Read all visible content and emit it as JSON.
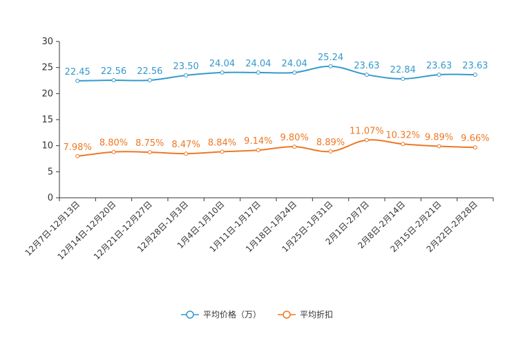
{
  "chart_data": {
    "type": "line",
    "title": "",
    "xlabel": "",
    "ylabel": "",
    "ylim": [
      0,
      30
    ],
    "yticks": [
      0,
      5,
      10,
      15,
      20,
      25,
      30
    ],
    "grid": false,
    "legend_position": "bottom-center",
    "categories": [
      "12月7日-12月13日",
      "12月14日-12月20日",
      "12月21日-12月27日",
      "12月28日-1月3日",
      "1月4日-1月10日",
      "1月11日-1月17日",
      "1月18日-1月24日",
      "1月25日-1月31日",
      "2月1日-2月7日",
      "2月8日-2月14日",
      "2月15日-2月21日",
      "2月22日-2月28日"
    ],
    "series": [
      {
        "name": "平均价格（万）",
        "color": "#3399cc",
        "values": [
          22.45,
          22.56,
          22.56,
          23.5,
          24.04,
          24.04,
          24.04,
          25.24,
          23.63,
          22.84,
          23.63,
          23.63
        ],
        "labels": [
          "22.45",
          "22.56",
          "22.56",
          "23.50",
          "24.04",
          "24.04",
          "24.04",
          "25.24",
          "23.63",
          "22.84",
          "23.63",
          "23.63"
        ]
      },
      {
        "name": "平均折扣",
        "color": "#ee7722",
        "values": [
          7.98,
          8.8,
          8.75,
          8.47,
          8.84,
          9.14,
          9.8,
          8.89,
          11.07,
          10.32,
          9.89,
          9.66
        ],
        "labels": [
          "7.98%",
          "8.80%",
          "8.75%",
          "8.47%",
          "8.84%",
          "9.14%",
          "9.80%",
          "8.89%",
          "11.07%",
          "10.32%",
          "9.89%",
          "9.66%"
        ]
      }
    ]
  }
}
